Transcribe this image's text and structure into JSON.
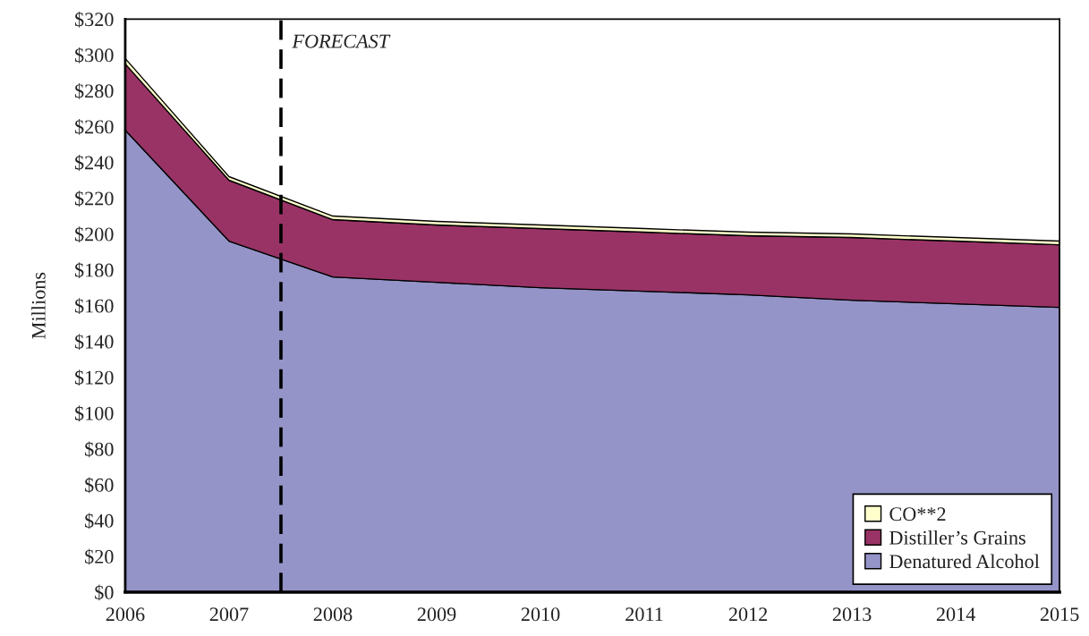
{
  "chart_data": {
    "type": "area",
    "ylabel": "Millions",
    "stacked": true,
    "x": [
      2006,
      2007,
      2008,
      2009,
      2010,
      2011,
      2012,
      2013,
      2014,
      2015
    ],
    "series": [
      {
        "name": "Denatured Alcohol",
        "color": "#9494c8",
        "values": [
          258,
          196,
          176,
          173,
          170,
          168,
          166,
          163,
          161,
          159
        ]
      },
      {
        "name": "Distiller’s Grains",
        "color": "#993366",
        "values": [
          37,
          34,
          32,
          32,
          33,
          33,
          33,
          35,
          35,
          35
        ]
      },
      {
        "name": "CO**2",
        "color": "#ffffcc",
        "values": [
          3,
          2,
          2,
          2,
          2,
          2,
          2,
          2,
          2,
          2
        ]
      }
    ],
    "xlim": [
      2006,
      2015
    ],
    "xticks": [
      2006,
      2007,
      2008,
      2009,
      2010,
      2011,
      2012,
      2013,
      2014,
      2015
    ],
    "ylim": [
      0,
      320
    ],
    "yticks": [
      {
        "value": 0,
        "label": "$0"
      },
      {
        "value": 20,
        "label": "$20"
      },
      {
        "value": 40,
        "label": "$40"
      },
      {
        "value": 60,
        "label": "$60"
      },
      {
        "value": 80,
        "label": "$80"
      },
      {
        "value": 100,
        "label": "$100"
      },
      {
        "value": 120,
        "label": "$120"
      },
      {
        "value": 140,
        "label": "$140"
      },
      {
        "value": 160,
        "label": "$160"
      },
      {
        "value": 180,
        "label": "$180"
      },
      {
        "value": 200,
        "label": "$200"
      },
      {
        "value": 220,
        "label": "$220"
      },
      {
        "value": 240,
        "label": "$240"
      },
      {
        "value": 260,
        "label": "$260"
      },
      {
        "value": 280,
        "label": "$280"
      },
      {
        "value": 300,
        "label": "$300"
      },
      {
        "value": 320,
        "label": "$320"
      }
    ],
    "ref_lines": [
      {
        "axis": "x",
        "value": 2007.5,
        "label": "FORECAST",
        "color": "#000000",
        "line_style": "dashed"
      }
    ],
    "legend": "bottom right"
  }
}
